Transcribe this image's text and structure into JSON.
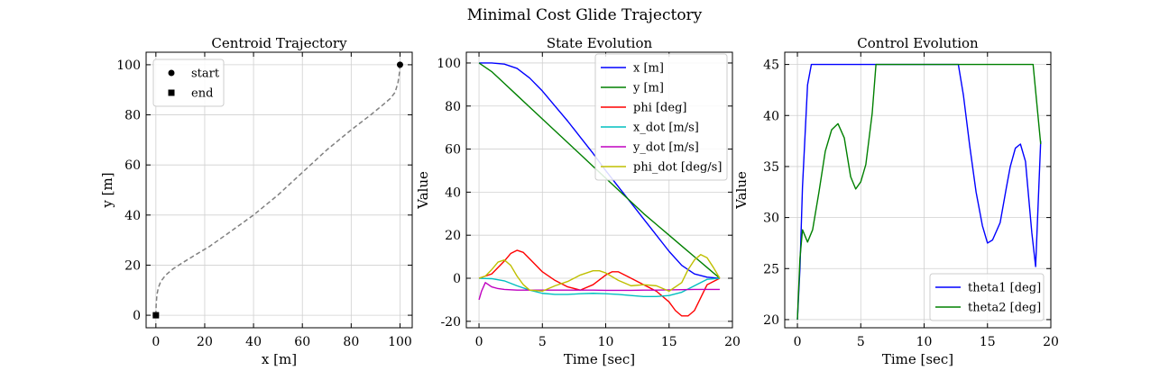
{
  "figure": {
    "suptitle": "Minimal Cost Glide Trajectory"
  },
  "chart_data": [
    {
      "type": "line",
      "title": "Centroid Trajectory",
      "xlabel": "x [m]",
      "ylabel": "y [m]",
      "xlim": [
        -4,
        105
      ],
      "ylim": [
        -5,
        105
      ],
      "xticks": [
        0,
        20,
        40,
        60,
        80,
        100
      ],
      "yticks": [
        0,
        20,
        40,
        60,
        80,
        100
      ],
      "grid": true,
      "legend": "upper-left",
      "series": [
        {
          "name": "",
          "color": "#808080",
          "dash": "dashed",
          "x": [
            0,
            0.1,
            0.4,
            1,
            2,
            4,
            7,
            11,
            16,
            22,
            30,
            40,
            50,
            60,
            70,
            80,
            88,
            93,
            96,
            98,
            99.2,
            99.8,
            100
          ],
          "y": [
            0,
            4,
            8,
            11,
            13.5,
            16,
            18.5,
            21,
            24,
            27.5,
            33,
            40,
            48,
            57,
            66,
            74,
            80,
            84,
            86.5,
            89,
            93,
            97,
            100
          ]
        }
      ],
      "markers": [
        {
          "name": "start",
          "shape": "circle",
          "x": 100,
          "y": 100
        },
        {
          "name": "end",
          "shape": "square",
          "x": 0,
          "y": 0
        }
      ]
    },
    {
      "type": "line",
      "title": "State Evolution",
      "xlabel": "Time [sec]",
      "ylabel": "Value",
      "xlim": [
        -1,
        20
      ],
      "ylim": [
        -23,
        105
      ],
      "xticks": [
        0,
        5,
        10,
        15,
        20
      ],
      "yticks": [
        -20,
        0,
        20,
        40,
        60,
        80,
        100
      ],
      "grid": true,
      "legend": "upper-right",
      "series": [
        {
          "name": "x [m]",
          "color": "#0000ff",
          "x": [
            0,
            1,
            2,
            3,
            4,
            5,
            6,
            7,
            8,
            9,
            10,
            11,
            12,
            13,
            14,
            15,
            16,
            17,
            18,
            19
          ],
          "y": [
            100,
            100,
            99.5,
            97.5,
            93,
            87,
            80,
            73,
            65.5,
            58,
            50,
            42.5,
            35,
            27.5,
            20,
            12.5,
            6,
            2,
            0.5,
            0
          ]
        },
        {
          "name": "y [m]",
          "color": "#008000",
          "x": [
            0,
            1,
            2,
            3,
            4,
            5,
            6,
            7,
            8,
            9,
            10,
            11,
            12,
            13,
            14,
            15,
            16,
            17,
            18,
            19
          ],
          "y": [
            100,
            96,
            90.5,
            85,
            79.5,
            74,
            68.5,
            63,
            57.5,
            52,
            46.5,
            41,
            35.5,
            30,
            25,
            20,
            15,
            10,
            5,
            0
          ]
        },
        {
          "name": "phi [deg]",
          "color": "#ff0000",
          "x": [
            0,
            1,
            2,
            2.5,
            3,
            3.5,
            4,
            5,
            6,
            7,
            8,
            9,
            10,
            10.5,
            11,
            12,
            13,
            14,
            15,
            15.5,
            16,
            16.5,
            17,
            17.5,
            18,
            19
          ],
          "y": [
            0,
            2,
            8,
            11.5,
            13,
            12,
            9,
            3,
            -1,
            -4,
            -5.5,
            -3,
            1.5,
            3,
            3,
            0,
            -3,
            -6,
            -11,
            -15,
            -17.5,
            -17.5,
            -15,
            -9,
            -3,
            0
          ]
        },
        {
          "name": "x_dot [m/s]",
          "color": "#00bfbf",
          "x": [
            0,
            1,
            2,
            3,
            4,
            5,
            6,
            7,
            8,
            9,
            10,
            11,
            12,
            13,
            14,
            15,
            16,
            17,
            18,
            19
          ],
          "y": [
            0,
            -0.2,
            -1.2,
            -3.5,
            -5.5,
            -7,
            -7.5,
            -7.5,
            -7.2,
            -7,
            -7.2,
            -7.5,
            -8,
            -8.5,
            -8.5,
            -8,
            -6.5,
            -3.5,
            -0.5,
            0
          ]
        },
        {
          "name": "y_dot [m/s]",
          "color": "#bf00bf",
          "x": [
            0,
            0.2,
            0.5,
            1,
            1.5,
            2,
            3,
            4,
            5,
            6,
            7,
            8,
            9,
            10,
            11,
            12,
            13,
            14,
            15,
            16,
            17,
            18,
            19
          ],
          "y": [
            -10,
            -6,
            -2,
            -4,
            -4.8,
            -5.2,
            -5.5,
            -5.5,
            -5.5,
            -5.5,
            -5.5,
            -5.5,
            -5.5,
            -5.6,
            -5.6,
            -5.6,
            -5.5,
            -5.5,
            -5.4,
            -5.3,
            -5.2,
            -5.2,
            -5.2
          ]
        },
        {
          "name": "phi_dot [deg/s]",
          "color": "#bfbf00",
          "x": [
            0,
            0.5,
            1,
            1.5,
            2,
            2.5,
            3,
            3.5,
            4,
            5,
            6,
            7,
            8,
            9,
            9.5,
            10,
            11,
            12,
            13,
            14,
            15,
            16,
            16.5,
            17,
            17.5,
            18,
            18.5,
            19
          ],
          "y": [
            0,
            1,
            4,
            7.5,
            8.5,
            6,
            1,
            -3,
            -5.5,
            -6,
            -3.5,
            -1.5,
            1.5,
            3.5,
            3.5,
            2.5,
            -1,
            -3.5,
            -3,
            -3.5,
            -6,
            -2,
            4,
            8.5,
            11,
            9.5,
            5,
            0
          ]
        }
      ]
    },
    {
      "type": "line",
      "title": "Control Evolution",
      "xlabel": "Time [sec]",
      "ylabel": "Value",
      "xlim": [
        -1,
        20
      ],
      "ylim": [
        19.2,
        46.2
      ],
      "xticks": [
        0,
        5,
        10,
        15,
        20
      ],
      "yticks": [
        20,
        25,
        30,
        35,
        40,
        45
      ],
      "grid": true,
      "legend": "lower-right",
      "series": [
        {
          "name": "theta1 [deg]",
          "color": "#0000ff",
          "x": [
            0,
            0.2,
            0.4,
            0.8,
            1.1,
            12.7,
            13.1,
            13.6,
            14.1,
            14.6,
            15.0,
            15.4,
            16.0,
            16.5,
            16.8,
            17.2,
            17.6,
            18.0,
            18.5,
            18.8,
            19.2
          ],
          "y": [
            20,
            25,
            33,
            43,
            45,
            45,
            42,
            37,
            32.5,
            29.2,
            27.5,
            27.8,
            29.5,
            33,
            35,
            36.8,
            37.2,
            35.5,
            28.5,
            25.2,
            37.5
          ]
        },
        {
          "name": "theta2 [deg]",
          "color": "#008000",
          "x": [
            0,
            0.2,
            0.4,
            0.8,
            1.2,
            1.7,
            2.2,
            2.7,
            3.2,
            3.7,
            4.2,
            4.6,
            5.0,
            5.4,
            5.9,
            6.2,
            18.6,
            19.2
          ],
          "y": [
            20,
            26,
            28.8,
            27.6,
            28.8,
            32.5,
            36.5,
            38.6,
            39.2,
            37.8,
            34,
            32.8,
            33.5,
            35.2,
            40.2,
            45,
            45,
            37.2
          ]
        }
      ]
    }
  ]
}
